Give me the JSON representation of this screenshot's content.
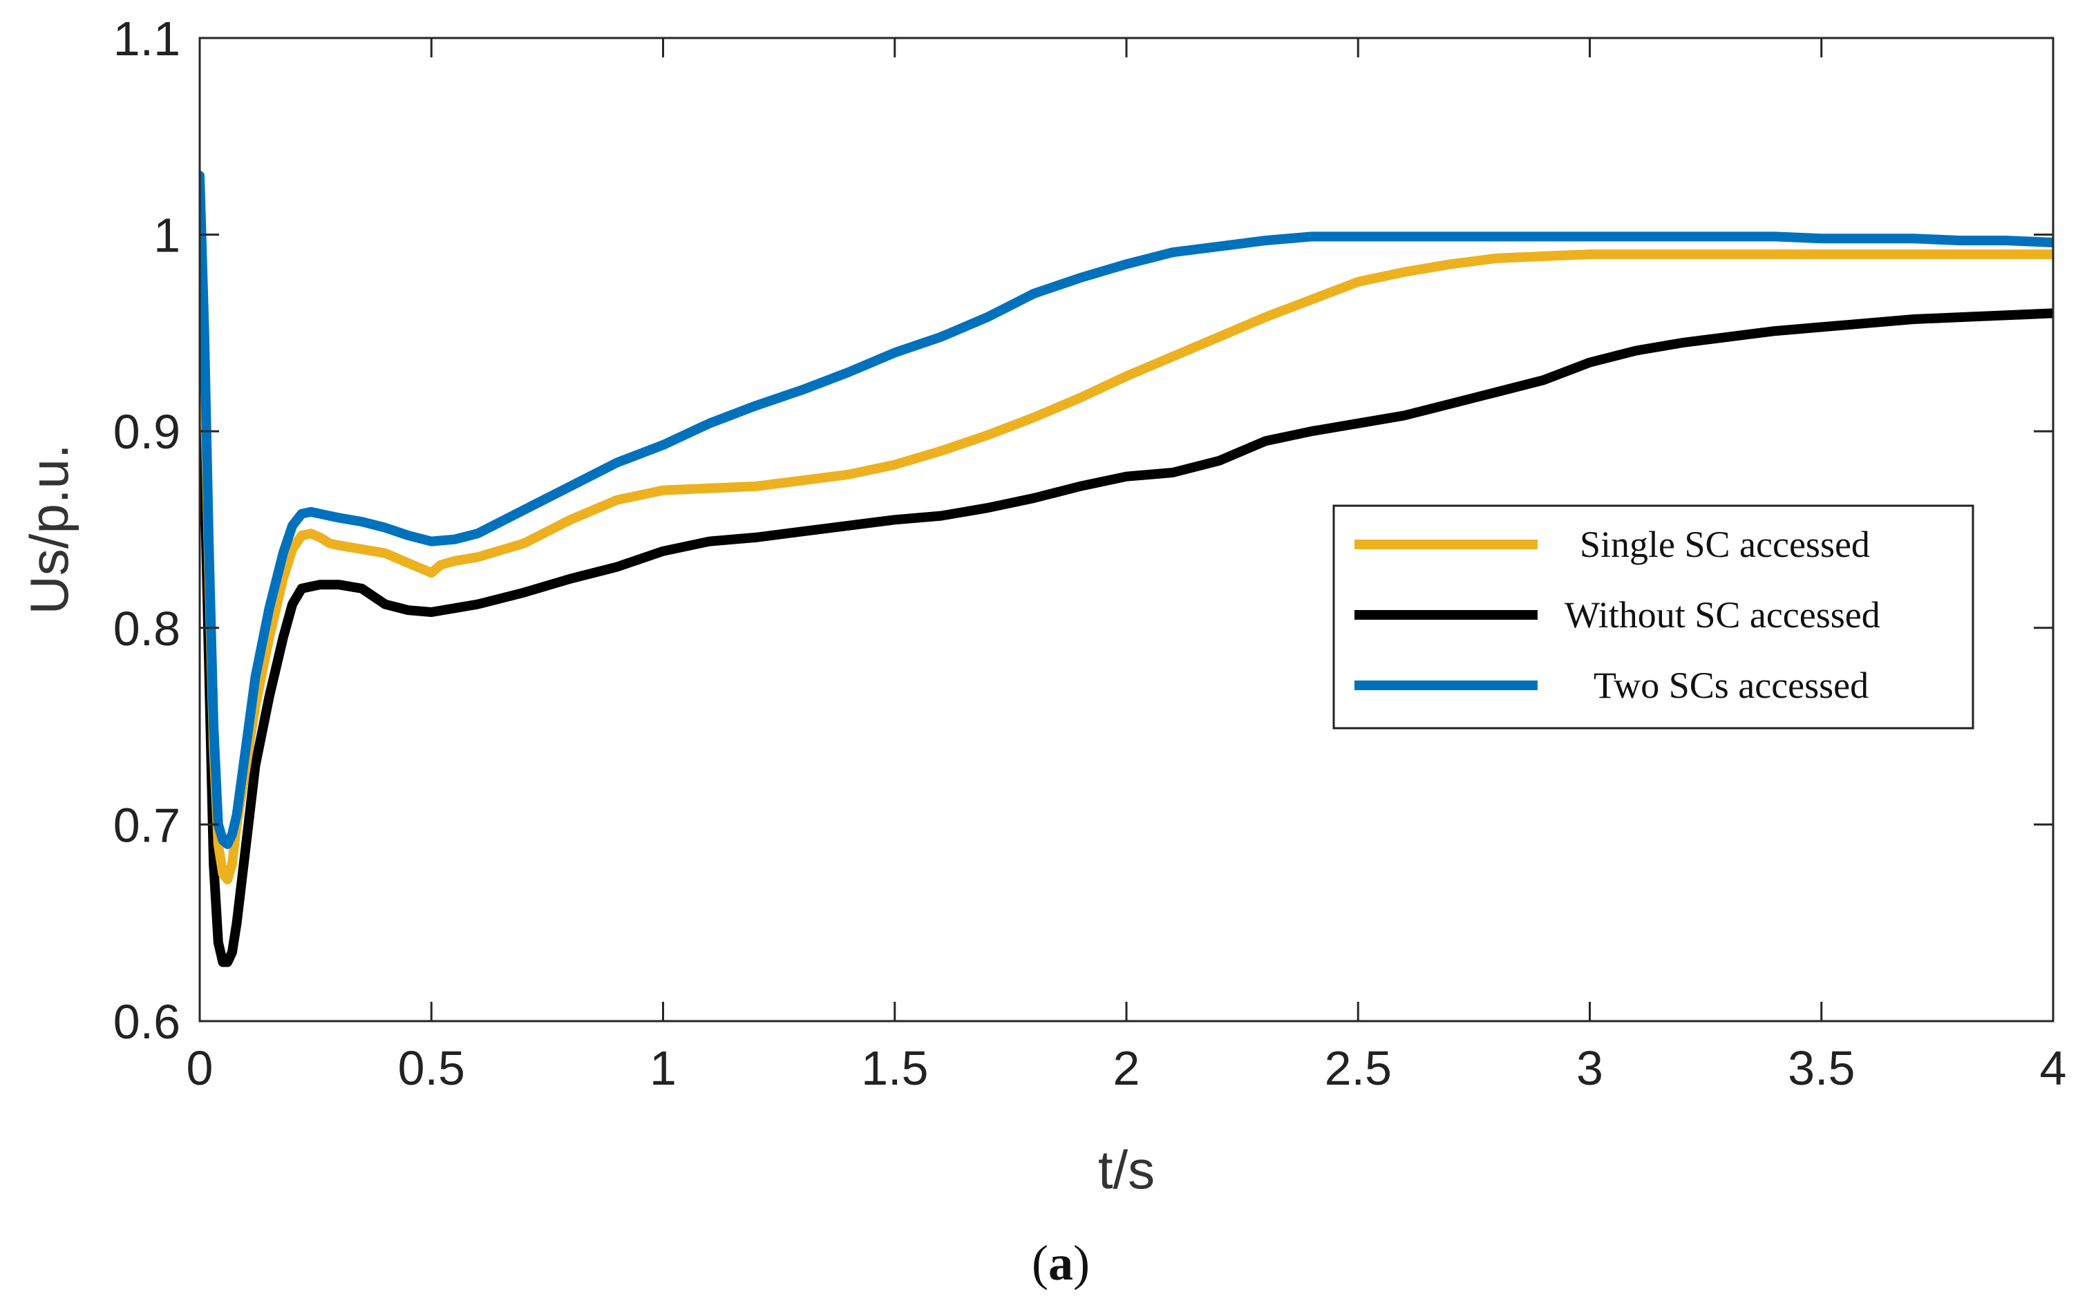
{
  "chart_data": {
    "type": "line",
    "xlabel": "t/s",
    "ylabel": "Us/p.u.",
    "caption_parts": [
      "(",
      "a",
      ")"
    ],
    "xlim": [
      0,
      4
    ],
    "ylim": [
      0.6,
      1.1
    ],
    "xticks": [
      0,
      0.5,
      1,
      1.5,
      2,
      2.5,
      3,
      3.5,
      4
    ],
    "xtick_labels": [
      "0",
      "0.5",
      "1",
      "1.5",
      "2",
      "2.5",
      "3",
      "3.5",
      "4"
    ],
    "yticks": [
      0.6,
      0.7,
      0.8,
      0.9,
      1.0,
      1.1
    ],
    "ytick_labels": [
      "0.6",
      "0.7",
      "0.8",
      "0.9",
      "1",
      "1.1"
    ],
    "grid": false,
    "legend_position": "middle-right",
    "series": [
      {
        "name": "Single SC accessed",
        "color": "#EDB120",
        "x": [
          0,
          0.01,
          0.02,
          0.03,
          0.04,
          0.05,
          0.06,
          0.07,
          0.08,
          0.1,
          0.12,
          0.15,
          0.18,
          0.2,
          0.22,
          0.24,
          0.26,
          0.28,
          0.3,
          0.35,
          0.4,
          0.45,
          0.48,
          0.5,
          0.52,
          0.55,
          0.6,
          0.7,
          0.8,
          0.9,
          1.0,
          1.1,
          1.2,
          1.3,
          1.4,
          1.5,
          1.6,
          1.7,
          1.8,
          1.9,
          2.0,
          2.1,
          2.2,
          2.3,
          2.4,
          2.5,
          2.6,
          2.7,
          2.8,
          2.9,
          3.0,
          3.1,
          3.2,
          3.3,
          3.4,
          3.5,
          3.6,
          3.7,
          3.8,
          3.9,
          4.0
        ],
        "values": [
          0.99,
          0.93,
          0.83,
          0.74,
          0.69,
          0.675,
          0.672,
          0.68,
          0.7,
          0.73,
          0.76,
          0.795,
          0.825,
          0.84,
          0.847,
          0.848,
          0.846,
          0.843,
          0.842,
          0.84,
          0.838,
          0.833,
          0.83,
          0.828,
          0.832,
          0.834,
          0.836,
          0.843,
          0.855,
          0.865,
          0.87,
          0.871,
          0.872,
          0.875,
          0.878,
          0.883,
          0.89,
          0.898,
          0.907,
          0.917,
          0.928,
          0.938,
          0.948,
          0.958,
          0.967,
          0.976,
          0.981,
          0.985,
          0.988,
          0.989,
          0.99,
          0.99,
          0.99,
          0.99,
          0.99,
          0.99,
          0.99,
          0.99,
          0.99,
          0.99,
          0.99
        ]
      },
      {
        "name": "Without SC accessed",
        "color": "#000000",
        "x": [
          0,
          0.01,
          0.02,
          0.03,
          0.04,
          0.05,
          0.06,
          0.07,
          0.08,
          0.1,
          0.12,
          0.15,
          0.18,
          0.2,
          0.22,
          0.24,
          0.26,
          0.28,
          0.3,
          0.35,
          0.4,
          0.45,
          0.5,
          0.55,
          0.6,
          0.7,
          0.8,
          0.9,
          1.0,
          1.1,
          1.2,
          1.3,
          1.4,
          1.5,
          1.6,
          1.7,
          1.8,
          1.9,
          2.0,
          2.1,
          2.2,
          2.3,
          2.4,
          2.5,
          2.6,
          2.7,
          2.8,
          2.9,
          3.0,
          3.1,
          3.2,
          3.3,
          3.4,
          3.5,
          3.6,
          3.7,
          3.8,
          3.9,
          4.0
        ],
        "values": [
          0.96,
          0.88,
          0.78,
          0.68,
          0.64,
          0.63,
          0.63,
          0.635,
          0.65,
          0.69,
          0.73,
          0.765,
          0.795,
          0.812,
          0.82,
          0.821,
          0.822,
          0.822,
          0.822,
          0.82,
          0.812,
          0.809,
          0.808,
          0.81,
          0.812,
          0.818,
          0.825,
          0.831,
          0.839,
          0.844,
          0.846,
          0.849,
          0.852,
          0.855,
          0.857,
          0.861,
          0.866,
          0.872,
          0.877,
          0.879,
          0.885,
          0.895,
          0.9,
          0.904,
          0.908,
          0.914,
          0.92,
          0.926,
          0.935,
          0.941,
          0.945,
          0.948,
          0.951,
          0.953,
          0.955,
          0.957,
          0.958,
          0.959,
          0.96
        ]
      },
      {
        "name": "Two SCs accessed",
        "color": "#0072BD",
        "x": [
          0,
          0.01,
          0.02,
          0.03,
          0.04,
          0.05,
          0.06,
          0.07,
          0.08,
          0.1,
          0.12,
          0.15,
          0.18,
          0.2,
          0.22,
          0.24,
          0.26,
          0.28,
          0.3,
          0.35,
          0.4,
          0.45,
          0.5,
          0.55,
          0.6,
          0.7,
          0.8,
          0.9,
          1.0,
          1.1,
          1.2,
          1.3,
          1.4,
          1.5,
          1.6,
          1.7,
          1.8,
          1.9,
          2.0,
          2.1,
          2.2,
          2.3,
          2.4,
          2.5,
          2.6,
          2.7,
          2.8,
          2.9,
          3.0,
          3.1,
          3.2,
          3.3,
          3.4,
          3.5,
          3.6,
          3.7,
          3.8,
          3.9,
          4.0
        ],
        "values": [
          1.03,
          0.95,
          0.84,
          0.75,
          0.7,
          0.692,
          0.69,
          0.695,
          0.705,
          0.74,
          0.775,
          0.81,
          0.838,
          0.852,
          0.858,
          0.859,
          0.858,
          0.857,
          0.856,
          0.854,
          0.851,
          0.847,
          0.844,
          0.845,
          0.848,
          0.86,
          0.872,
          0.884,
          0.893,
          0.904,
          0.913,
          0.921,
          0.93,
          0.94,
          0.948,
          0.958,
          0.97,
          0.978,
          0.985,
          0.991,
          0.994,
          0.997,
          0.999,
          0.999,
          0.999,
          0.999,
          0.999,
          0.999,
          0.999,
          0.999,
          0.999,
          0.999,
          0.999,
          0.998,
          0.998,
          0.998,
          0.997,
          0.997,
          0.996
        ]
      }
    ]
  }
}
